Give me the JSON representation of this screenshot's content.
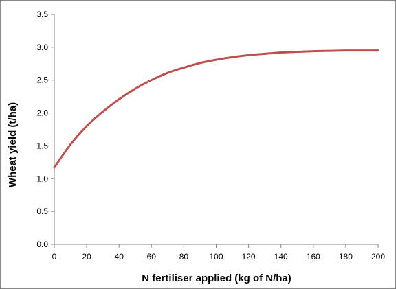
{
  "chart_data": {
    "type": "line",
    "title": "",
    "xlabel": "N fertiliser applied (kg of N/ha)",
    "ylabel": "Wheat yield (t/ha)",
    "xlim": [
      0,
      200
    ],
    "ylim": [
      0,
      3.5
    ],
    "x_ticks": [
      "0",
      "20",
      "40",
      "60",
      "80",
      "100",
      "120",
      "140",
      "160",
      "180",
      "200"
    ],
    "y_ticks": [
      "0.0",
      "0.5",
      "1.0",
      "1.5",
      "2.0",
      "2.5",
      "3.0",
      "3.5"
    ],
    "grid": false,
    "legend": "none",
    "series": [
      {
        "color": "#c0504d",
        "x": [
          0,
          10,
          20,
          30,
          40,
          50,
          60,
          70,
          80,
          90,
          100,
          110,
          120,
          130,
          140,
          150,
          160,
          170,
          180,
          190,
          200
        ],
        "y": [
          1.17,
          1.52,
          1.8,
          2.02,
          2.21,
          2.37,
          2.5,
          2.61,
          2.69,
          2.76,
          2.81,
          2.85,
          2.88,
          2.9,
          2.92,
          2.93,
          2.94,
          2.945,
          2.95,
          2.95,
          2.95
        ]
      }
    ]
  }
}
